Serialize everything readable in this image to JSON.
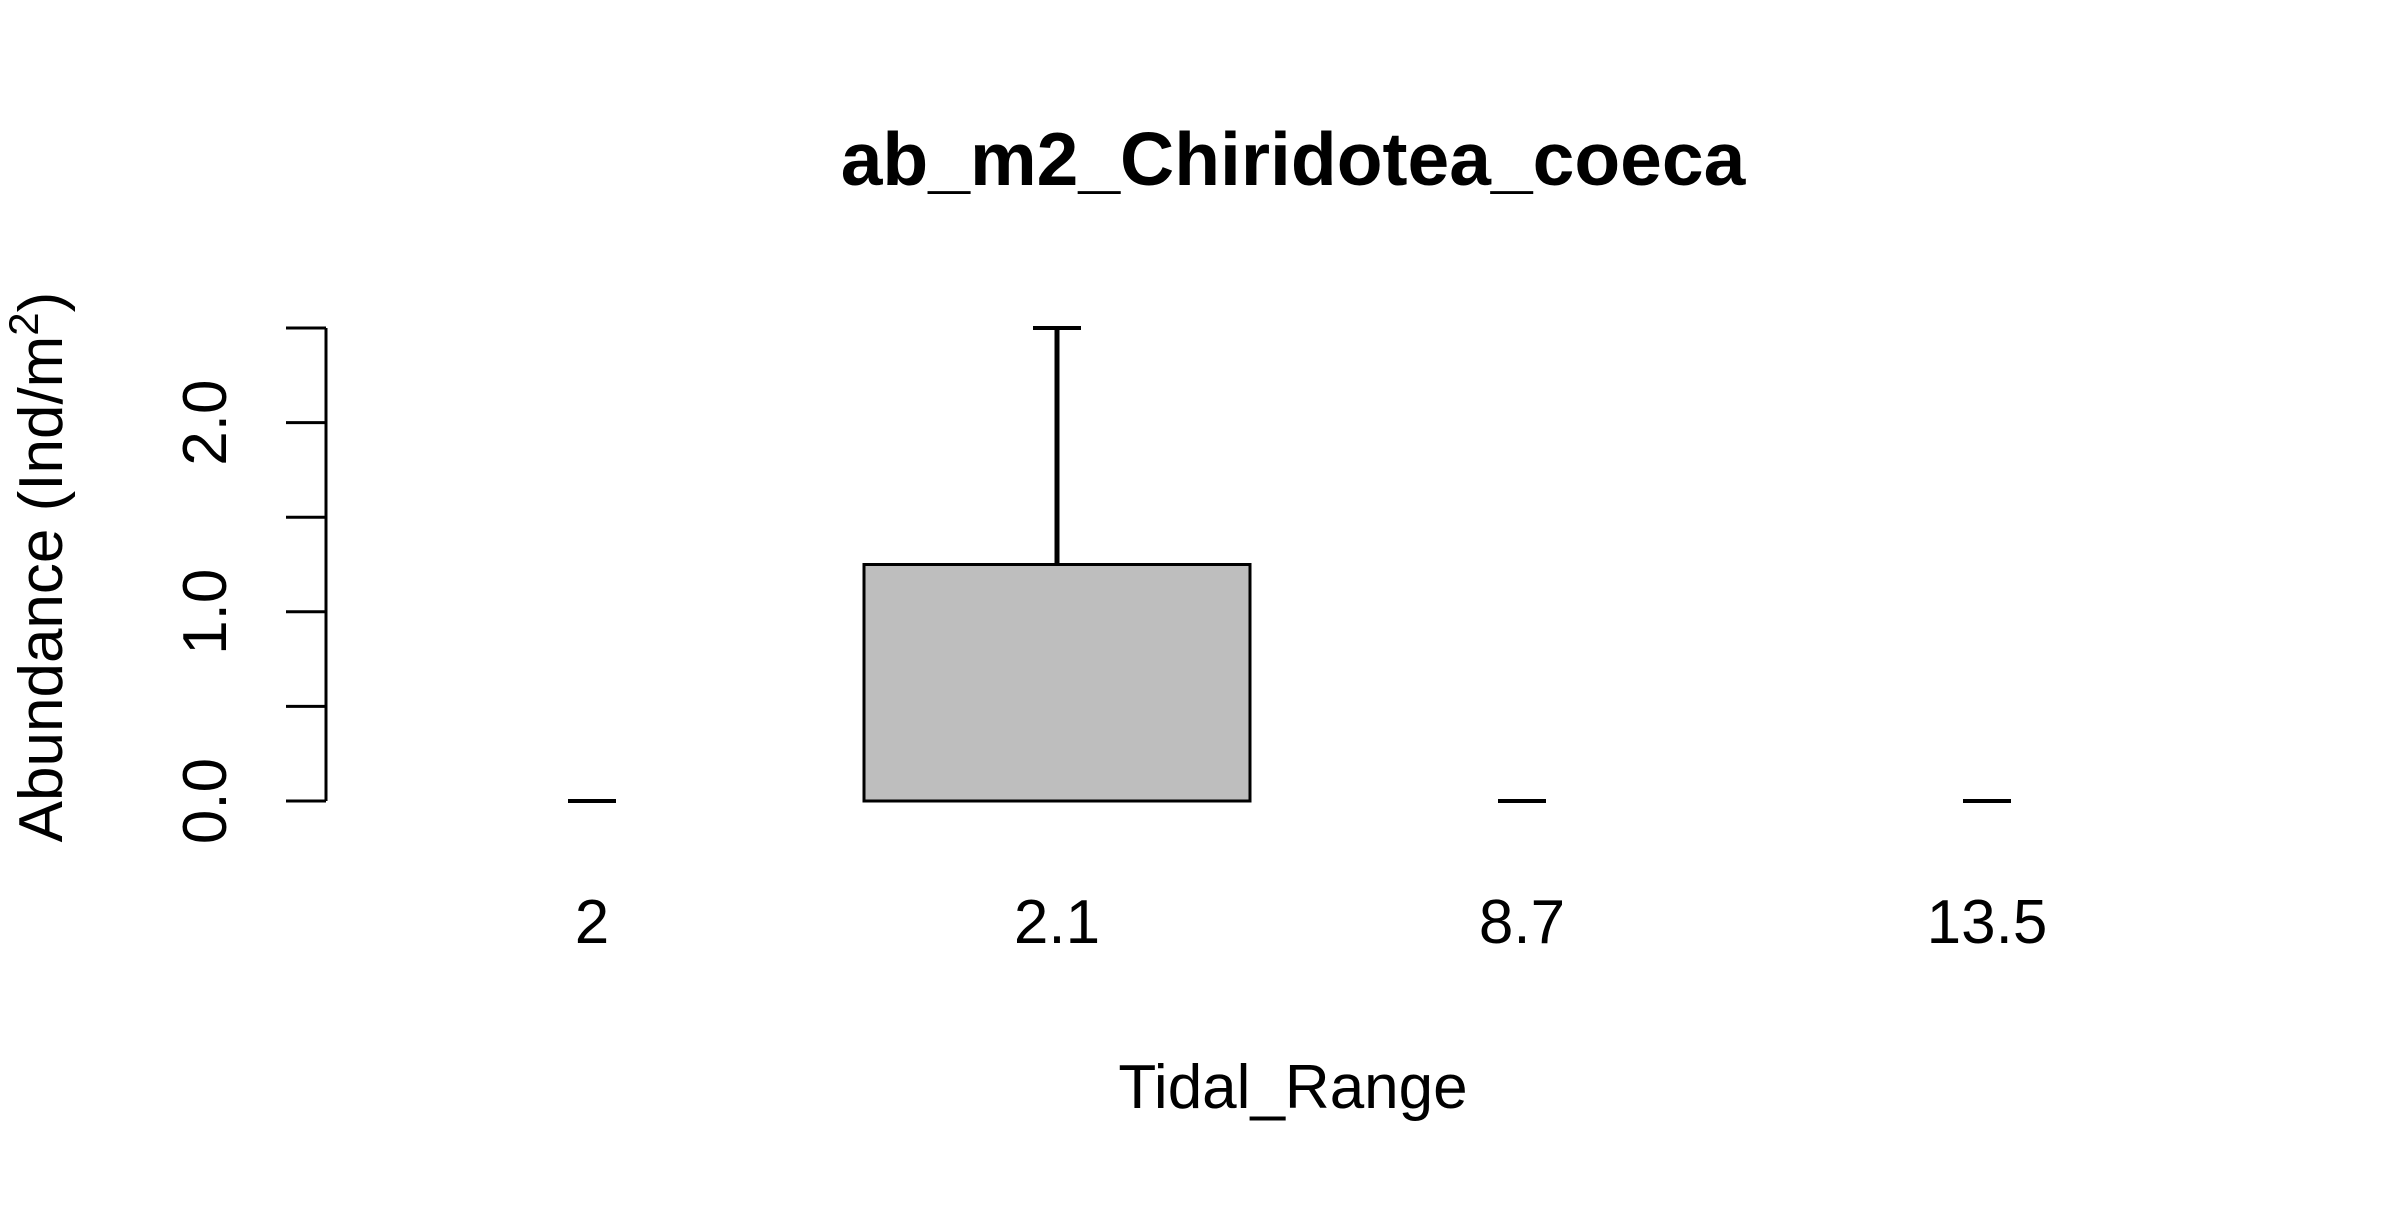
{
  "chart_data": {
    "type": "bar",
    "title": "ab_m2_Chiridotea_coeca",
    "xlabel": "Tidal_Range",
    "ylabel": "Abundance (Ind/m",
    "ylabel_superscript": "2",
    "ylabel_suffix": ")",
    "categories": [
      "2",
      "2.1",
      "8.7",
      "13.5"
    ],
    "values": [
      0,
      1.25,
      0,
      0
    ],
    "error_upper": [
      0,
      2.5,
      0,
      0
    ],
    "ylim": [
      0,
      2.5
    ],
    "yticks": [
      0,
      0.5,
      1.0,
      1.5,
      2.0,
      2.5
    ],
    "ytick_labels": [
      "0.0",
      "",
      "1.0",
      "",
      "2.0",
      ""
    ],
    "grid": false,
    "bar_color": "#bebebe",
    "bar_edge_color": "#000000"
  }
}
